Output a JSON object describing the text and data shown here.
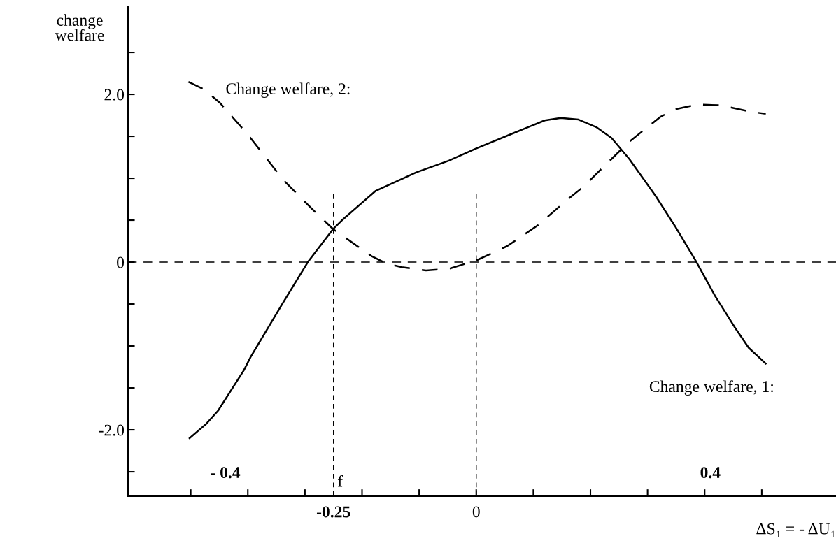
{
  "chart_data": {
    "type": "line",
    "ylabel": "change\nwelfare",
    "xlabel": "ΔS₁ = - ΔU₁",
    "xlim": [
      -0.61,
      0.63
    ],
    "ylim": [
      -2.79,
      3.04
    ],
    "xticks": [
      {
        "value": -0.5,
        "label": null
      },
      {
        "value": -0.4,
        "label": null
      },
      {
        "value": -0.3,
        "label": null
      },
      {
        "value": -0.25,
        "label": "-0.25"
      },
      {
        "value": -0.2,
        "label": null
      },
      {
        "value": -0.1,
        "label": null
      },
      0,
      {
        "value": 0.1,
        "label": null
      },
      {
        "value": 0.2,
        "label": null
      },
      {
        "value": 0.3,
        "label": null
      },
      {
        "value": 0.4,
        "label": null
      },
      {
        "value": 0.5,
        "label": null
      }
    ],
    "yticks": [
      {
        "value": -2.5,
        "label": null
      },
      {
        "value": -2.0,
        "label": "-2.0"
      },
      {
        "value": -1.5,
        "label": null
      },
      {
        "value": -1.0,
        "label": null
      },
      {
        "value": -0.5,
        "label": null
      },
      0,
      {
        "value": 0.5,
        "label": null
      },
      {
        "value": 1.0,
        "label": null
      },
      {
        "value": 1.5,
        "label": null
      },
      {
        "value": 2.0,
        "label": "2.0"
      },
      {
        "value": 2.5,
        "label": null
      }
    ],
    "grid": false,
    "annotations": [
      "- 0.4",
      "0.4"
    ],
    "legend": false,
    "marker": "none",
    "ref_lines": [
      {
        "axis": "y",
        "value": 0,
        "line_style": "dashed",
        "color": "#000000"
      },
      {
        "axis": "x",
        "value": -0.25,
        "label": "f",
        "line_style": "dashed",
        "color": "#000000"
      },
      {
        "axis": "x",
        "value": 0,
        "line_style": "dashed",
        "color": "#000000"
      }
    ],
    "series": [
      {
        "name": "Change welfare, 1:",
        "color": "#000000",
        "line_style": "solid",
        "x": [
          -0.502,
          -0.473,
          -0.452,
          -0.407,
          -0.395,
          -0.338,
          -0.295,
          -0.25,
          -0.235,
          -0.176,
          -0.105,
          -0.048,
          -0.002,
          0.066,
          0.12,
          0.148,
          0.179,
          0.21,
          0.237,
          0.268,
          0.314,
          0.348,
          0.384,
          0.418,
          0.452,
          0.477,
          0.507
        ],
        "values": [
          -2.1,
          -1.93,
          -1.77,
          -1.29,
          -1.13,
          -0.48,
          0.0,
          0.4,
          0.5,
          0.85,
          1.07,
          1.21,
          1.35,
          1.54,
          1.69,
          1.72,
          1.7,
          1.61,
          1.48,
          1.23,
          0.79,
          0.43,
          0.02,
          -0.4,
          -0.77,
          -1.02,
          -1.21
        ]
      },
      {
        "name": "Change welfare, 2:",
        "color": "#000000",
        "line_style": "dashed",
        "x": [
          -0.504,
          -0.477,
          -0.449,
          -0.401,
          -0.338,
          -0.287,
          -0.25,
          -0.183,
          -0.156,
          -0.13,
          -0.088,
          -0.048,
          0.0,
          0.054,
          0.108,
          0.164,
          0.188,
          0.213,
          0.267,
          0.322,
          0.347,
          0.387,
          0.428,
          0.482,
          0.507
        ],
        "values": [
          2.15,
          2.06,
          1.9,
          1.53,
          0.98,
          0.63,
          0.39,
          0.07,
          -0.02,
          -0.06,
          -0.1,
          -0.08,
          0.02,
          0.19,
          0.44,
          0.77,
          0.9,
          1.07,
          1.43,
          1.73,
          1.82,
          1.88,
          1.87,
          1.79,
          1.77
        ]
      }
    ]
  }
}
